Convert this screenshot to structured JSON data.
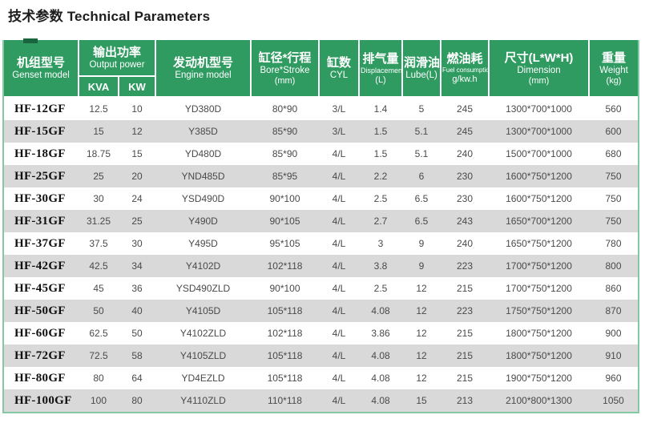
{
  "title": "技术参数 Technical Parameters",
  "colors": {
    "header_green": "#2f9b61",
    "accent_dark_green": "#18653e",
    "row_stripe_gray": "#d9d9d9",
    "table_border_green": "#84c8a5",
    "title_text": "#1d1d1d",
    "cell_text": "#4a4a4a",
    "model_text": "#0f0f0f"
  },
  "table": {
    "header": {
      "genset_model": {
        "zh": "机组型号",
        "en": "Genset model"
      },
      "output_power": {
        "zh": "输出功率",
        "en": "Output power",
        "sub": [
          "KVA",
          "KW"
        ]
      },
      "engine_model": {
        "zh": "发动机型号",
        "en": "Engine model"
      },
      "bore_stroke": {
        "zh": "缸径*行程",
        "en": "Bore*Stroke",
        "unit": "(mm)"
      },
      "cyl": {
        "zh": "缸数",
        "en": "CYL"
      },
      "displacement": {
        "zh": "排气量",
        "en": "Displacement",
        "unit": "(L)"
      },
      "lube": {
        "zh": "润滑油",
        "en": "Lube(L)"
      },
      "fuel_consumption": {
        "zh": "燃油耗",
        "en": "Fuel consumption",
        "unit": "g/kw.h"
      },
      "dimension": {
        "zh": "尺寸(L*W*H)",
        "en": "Dimension",
        "unit": "(mm)"
      },
      "weight": {
        "zh": "重量",
        "en": "Weight",
        "unit": "(kg)"
      }
    },
    "rows": [
      [
        "HF-12GF",
        "12.5",
        "10",
        "YD380D",
        "80*90",
        "3/L",
        "1.4",
        "5",
        "245",
        "1300*700*1000",
        "560"
      ],
      [
        "HF-15GF",
        "15",
        "12",
        "Y385D",
        "85*90",
        "3/L",
        "1.5",
        "5.1",
        "245",
        "1300*700*1000",
        "600"
      ],
      [
        "HF-18GF",
        "18.75",
        "15",
        "YD480D",
        "85*90",
        "4/L",
        "1.5",
        "5.1",
        "240",
        "1500*700*1000",
        "680"
      ],
      [
        "HF-25GF",
        "25",
        "20",
        "YND485D",
        "85*95",
        "4/L",
        "2.2",
        "6",
        "230",
        "1600*750*1200",
        "750"
      ],
      [
        "HF-30GF",
        "30",
        "24",
        "YSD490D",
        "90*100",
        "4/L",
        "2.5",
        "6.5",
        "230",
        "1600*750*1200",
        "750"
      ],
      [
        "HF-31GF",
        "31.25",
        "25",
        "Y490D",
        "90*105",
        "4/L",
        "2.7",
        "6.5",
        "243",
        "1650*700*1200",
        "750"
      ],
      [
        "HF-37GF",
        "37.5",
        "30",
        "Y495D",
        "95*105",
        "4/L",
        "3",
        "9",
        "240",
        "1650*750*1200",
        "780"
      ],
      [
        "HF-42GF",
        "42.5",
        "34",
        "Y4102D",
        "102*118",
        "4/L",
        "3.8",
        "9",
        "223",
        "1700*750*1200",
        "800"
      ],
      [
        "HF-45GF",
        "45",
        "36",
        "YSD490ZLD",
        "90*100",
        "4/L",
        "2.5",
        "12",
        "215",
        "1700*750*1200",
        "860"
      ],
      [
        "HF-50GF",
        "50",
        "40",
        "Y4105D",
        "105*118",
        "4/L",
        "4.08",
        "12",
        "223",
        "1750*750*1200",
        "870"
      ],
      [
        "HF-60GF",
        "62.5",
        "50",
        "Y4102ZLD",
        "102*118",
        "4/L",
        "3.86",
        "12",
        "215",
        "1800*750*1200",
        "900"
      ],
      [
        "HF-72GF",
        "72.5",
        "58",
        "Y4105ZLD",
        "105*118",
        "4/L",
        "4.08",
        "12",
        "215",
        "1800*750*1200",
        "910"
      ],
      [
        "HF-80GF",
        "80",
        "64",
        "YD4EZLD",
        "105*118",
        "4/L",
        "4.08",
        "12",
        "215",
        "1900*750*1200",
        "960"
      ],
      [
        "HF-100GF",
        "100",
        "80",
        "Y4110ZLD",
        "110*118",
        "4/L",
        "4.08",
        "15",
        "213",
        "2100*800*1300",
        "1050"
      ]
    ]
  }
}
